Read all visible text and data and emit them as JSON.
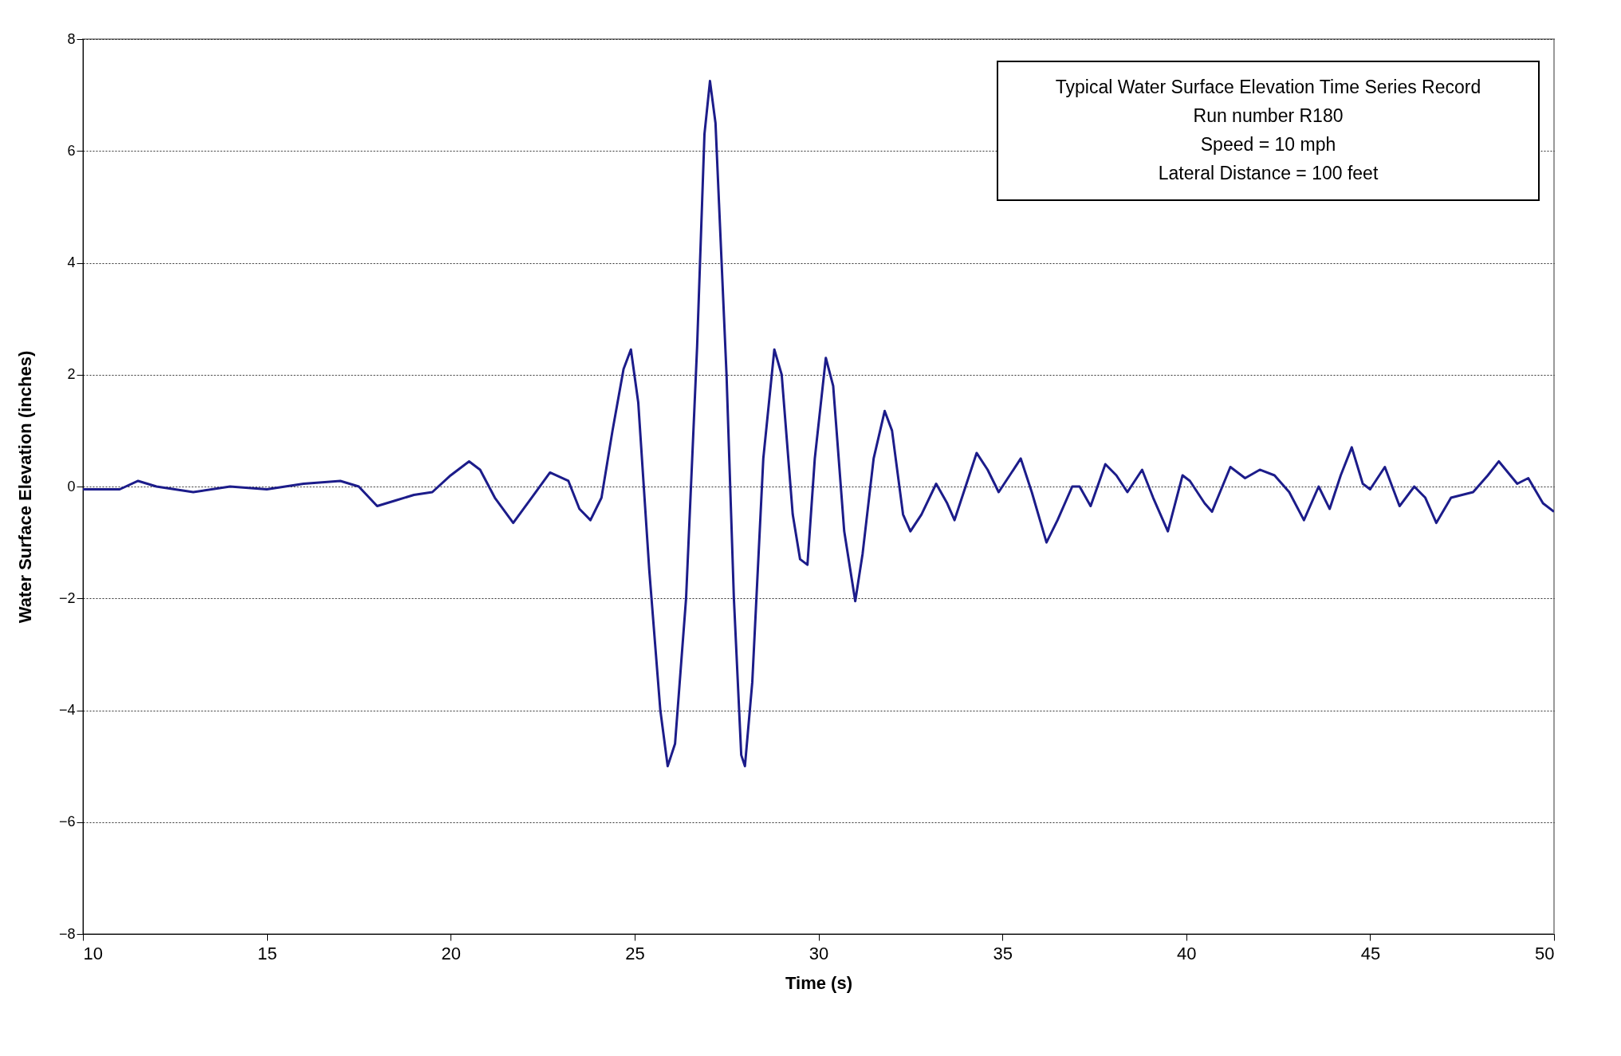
{
  "chart_data": {
    "type": "line",
    "title": "Typical Water Surface Elevation Time Series Record",
    "annotations": [
      "Run number R180",
      "Speed = 10 mph",
      "Lateral Distance = 100 feet"
    ],
    "xlabel": "Time  (s)",
    "ylabel": "Water Surface Elevation     (inches)",
    "x": [
      10,
      11,
      11.5,
      12,
      13,
      14,
      15,
      16,
      17,
      17.5,
      18,
      18.5,
      19,
      19.5,
      20,
      20.5,
      20.8,
      21.2,
      21.7,
      22.2,
      22.7,
      23.2,
      23.5,
      23.8,
      24.1,
      24.4,
      24.7,
      24.9,
      25.1,
      25.4,
      25.7,
      25.9,
      26.1,
      26.4,
      26.7,
      26.9,
      27.05,
      27.2,
      27.5,
      27.7,
      27.9,
      28,
      28.2,
      28.5,
      28.8,
      29,
      29.3,
      29.5,
      29.7,
      29.9,
      30.2,
      30.4,
      30.7,
      31,
      31.2,
      31.5,
      31.8,
      32,
      32.3,
      32.5,
      32.8,
      33.2,
      33.5,
      33.7,
      34,
      34.3,
      34.6,
      34.9,
      35.2,
      35.5,
      35.8,
      36.2,
      36.5,
      36.9,
      37.1,
      37.4,
      37.8,
      38.1,
      38.4,
      38.8,
      39.1,
      39.5,
      39.9,
      40.1,
      40.5,
      40.7,
      41.2,
      41.6,
      42,
      42.4,
      42.8,
      43.2,
      43.6,
      43.9,
      44.2,
      44.5,
      44.8,
      45,
      45.4,
      45.8,
      46.2,
      46.5,
      46.8,
      47.2,
      47.8,
      48.2,
      48.5,
      49,
      49.3,
      49.7,
      50
    ],
    "series": [
      {
        "color": "#1c1c8a",
        "values": [
          -0.05,
          -0.05,
          0.1,
          0,
          -0.1,
          0,
          -0.05,
          0.05,
          0.1,
          0,
          -0.35,
          -0.25,
          -0.15,
          -0.1,
          0.2,
          0.45,
          0.3,
          -0.2,
          -0.65,
          -0.2,
          0.25,
          0.1,
          -0.4,
          -0.6,
          -0.2,
          1.0,
          2.1,
          2.45,
          1.5,
          -1.5,
          -4.0,
          -5.0,
          -4.6,
          -2.0,
          2.5,
          6.3,
          7.25,
          6.5,
          2.0,
          -2.0,
          -4.8,
          -5.0,
          -3.5,
          0.5,
          2.45,
          2.0,
          -0.5,
          -1.3,
          -1.4,
          0.5,
          2.3,
          1.8,
          -0.8,
          -2.05,
          -1.2,
          0.5,
          1.35,
          1.0,
          -0.5,
          -0.8,
          -0.5,
          0.05,
          -0.3,
          -0.6,
          0,
          0.6,
          0.3,
          -0.1,
          0.2,
          0.5,
          -0.1,
          -1.0,
          -0.6,
          0,
          0,
          -0.35,
          0.4,
          0.2,
          -0.1,
          0.3,
          -0.2,
          -0.8,
          0.2,
          0.1,
          -0.3,
          -0.45,
          0.35,
          0.15,
          0.3,
          0.2,
          -0.1,
          -0.6,
          0,
          -0.4,
          0.2,
          0.7,
          0.05,
          -0.05,
          0.35,
          -0.35,
          0,
          -0.2,
          -0.65,
          -0.2,
          -0.1,
          0.2,
          0.45,
          0.05,
          0.15,
          -0.3,
          -0.45
        ]
      }
    ],
    "xlim": [
      10,
      50
    ],
    "xticks": [
      10,
      15,
      20,
      25,
      30,
      35,
      40,
      45,
      50
    ],
    "ylim": [
      -8,
      8
    ],
    "yticks": [
      -8,
      -6,
      -4,
      -2,
      0,
      2,
      4,
      6,
      8
    ],
    "grid": "y",
    "line_style": "solid",
    "marker": "none"
  }
}
